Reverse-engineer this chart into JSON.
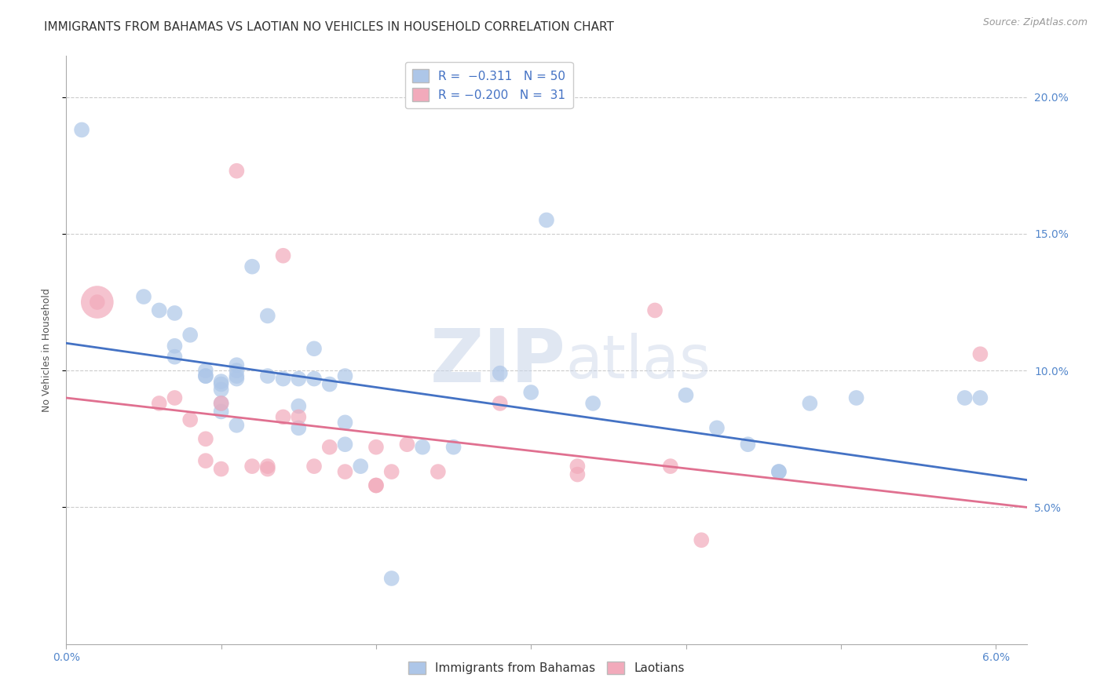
{
  "title": "IMMIGRANTS FROM BAHAMAS VS LAOTIAN NO VEHICLES IN HOUSEHOLD CORRELATION CHART",
  "source": "Source: ZipAtlas.com",
  "ylabel": "No Vehicles in Household",
  "y_ticks": [
    0.05,
    0.1,
    0.15,
    0.2
  ],
  "y_tick_labels": [
    "5.0%",
    "10.0%",
    "15.0%",
    "20.0%"
  ],
  "xlim": [
    0.0,
    0.062
  ],
  "ylim": [
    0.0,
    0.215
  ],
  "legend_label_blue": "Immigrants from Bahamas",
  "legend_label_pink": "Laotians",
  "watermark_zip": "ZIP",
  "watermark_atlas": "atlas",
  "blue_color": "#adc6e8",
  "pink_color": "#f2aabb",
  "blue_line_color": "#4472c4",
  "pink_line_color": "#e07090",
  "blue_scatter": [
    [
      0.001,
      0.188
    ],
    [
      0.005,
      0.127
    ],
    [
      0.006,
      0.122
    ],
    [
      0.007,
      0.121
    ],
    [
      0.007,
      0.109
    ],
    [
      0.007,
      0.105
    ],
    [
      0.008,
      0.113
    ],
    [
      0.009,
      0.1
    ],
    [
      0.009,
      0.098
    ],
    [
      0.009,
      0.098
    ],
    [
      0.01,
      0.096
    ],
    [
      0.01,
      0.095
    ],
    [
      0.01,
      0.093
    ],
    [
      0.01,
      0.088
    ],
    [
      0.01,
      0.085
    ],
    [
      0.011,
      0.102
    ],
    [
      0.011,
      0.1
    ],
    [
      0.011,
      0.098
    ],
    [
      0.011,
      0.097
    ],
    [
      0.011,
      0.08
    ],
    [
      0.012,
      0.138
    ],
    [
      0.013,
      0.12
    ],
    [
      0.013,
      0.098
    ],
    [
      0.014,
      0.097
    ],
    [
      0.015,
      0.097
    ],
    [
      0.015,
      0.087
    ],
    [
      0.015,
      0.079
    ],
    [
      0.016,
      0.108
    ],
    [
      0.016,
      0.097
    ],
    [
      0.017,
      0.095
    ],
    [
      0.018,
      0.098
    ],
    [
      0.018,
      0.081
    ],
    [
      0.018,
      0.073
    ],
    [
      0.019,
      0.065
    ],
    [
      0.021,
      0.024
    ],
    [
      0.023,
      0.072
    ],
    [
      0.025,
      0.072
    ],
    [
      0.028,
      0.099
    ],
    [
      0.03,
      0.092
    ],
    [
      0.031,
      0.155
    ],
    [
      0.034,
      0.088
    ],
    [
      0.04,
      0.091
    ],
    [
      0.042,
      0.079
    ],
    [
      0.044,
      0.073
    ],
    [
      0.046,
      0.063
    ],
    [
      0.046,
      0.063
    ],
    [
      0.048,
      0.088
    ],
    [
      0.051,
      0.09
    ],
    [
      0.058,
      0.09
    ],
    [
      0.059,
      0.09
    ]
  ],
  "pink_scatter": [
    [
      0.002,
      0.125
    ],
    [
      0.006,
      0.088
    ],
    [
      0.007,
      0.09
    ],
    [
      0.008,
      0.082
    ],
    [
      0.009,
      0.075
    ],
    [
      0.009,
      0.067
    ],
    [
      0.01,
      0.088
    ],
    [
      0.01,
      0.064
    ],
    [
      0.011,
      0.173
    ],
    [
      0.012,
      0.065
    ],
    [
      0.013,
      0.065
    ],
    [
      0.013,
      0.064
    ],
    [
      0.014,
      0.142
    ],
    [
      0.014,
      0.083
    ],
    [
      0.015,
      0.083
    ],
    [
      0.016,
      0.065
    ],
    [
      0.017,
      0.072
    ],
    [
      0.018,
      0.063
    ],
    [
      0.02,
      0.072
    ],
    [
      0.02,
      0.058
    ],
    [
      0.02,
      0.058
    ],
    [
      0.021,
      0.063
    ],
    [
      0.022,
      0.073
    ],
    [
      0.024,
      0.063
    ],
    [
      0.028,
      0.088
    ],
    [
      0.033,
      0.065
    ],
    [
      0.033,
      0.062
    ],
    [
      0.038,
      0.122
    ],
    [
      0.039,
      0.065
    ],
    [
      0.041,
      0.038
    ],
    [
      0.059,
      0.106
    ]
  ],
  "blue_trend_x": [
    0.0,
    0.062
  ],
  "blue_trend_y": [
    0.11,
    0.06
  ],
  "pink_trend_x": [
    0.0,
    0.062
  ],
  "pink_trend_y": [
    0.09,
    0.05
  ],
  "grid_color": "#cccccc",
  "background_color": "#ffffff",
  "title_fontsize": 11,
  "axis_label_fontsize": 9,
  "tick_fontsize": 10,
  "tick_color": "#5588cc"
}
